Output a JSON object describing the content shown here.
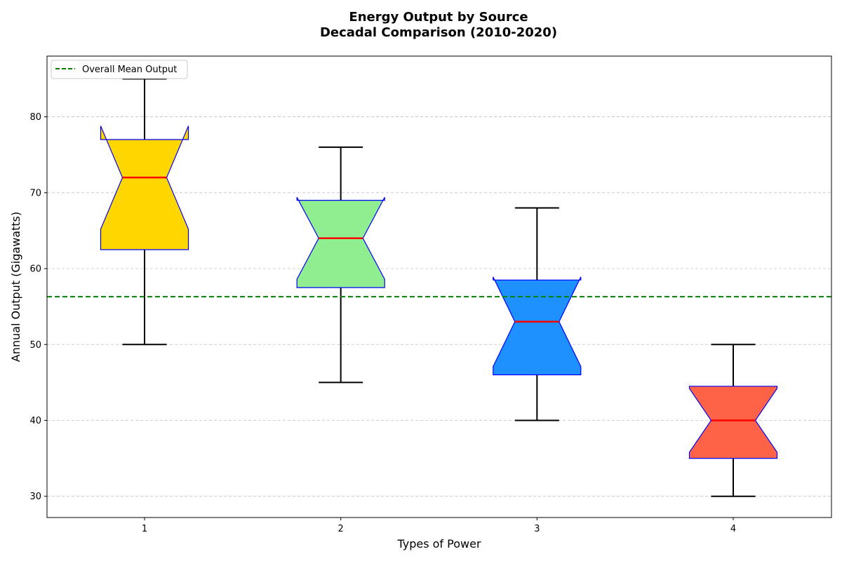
{
  "chart_data": {
    "type": "box",
    "title_line1": "Energy Output by Source",
    "title_line2": "Decadal Comparison (2010-2020)",
    "xlabel": "Types of Power",
    "ylabel": "Annual Output (Gigawatts)",
    "categories": [
      "1",
      "2",
      "3",
      "4"
    ],
    "ylim": [
      27.2,
      88
    ],
    "yticks": [
      30,
      40,
      50,
      60,
      70,
      80
    ],
    "grid": "y-dashed",
    "notched": true,
    "boxes": [
      {
        "category": "1",
        "whisker_low": 50,
        "q1": 62.5,
        "median": 72,
        "q3": 77,
        "whisker_high": 85,
        "notch_low": 65.2,
        "notch_high": 78.8,
        "fill": "#FFD700"
      },
      {
        "category": "2",
        "whisker_low": 45,
        "q1": 57.5,
        "median": 64,
        "q3": 69,
        "whisker_high": 76,
        "notch_low": 58.6,
        "notch_high": 69.4,
        "fill": "#90EE90"
      },
      {
        "category": "3",
        "whisker_low": 40,
        "q1": 46,
        "median": 53,
        "q3": 58.5,
        "whisker_high": 68,
        "notch_low": 47.1,
        "notch_high": 58.9,
        "fill": "#1E90FF"
      },
      {
        "category": "4",
        "whisker_low": 30,
        "q1": 35,
        "median": 40,
        "q3": 44.5,
        "whisker_high": 50,
        "notch_low": 35.8,
        "notch_high": 44.2,
        "fill": "#FF6347"
      }
    ],
    "box_edge_color": "#0000FF",
    "median_color": "#FF0000",
    "whisker_color": "#000000",
    "mean_line": {
      "value": 56.3,
      "label": "Overall Mean Output",
      "color": "#008000",
      "style": "dashed"
    },
    "legend_position": "upper-left"
  }
}
